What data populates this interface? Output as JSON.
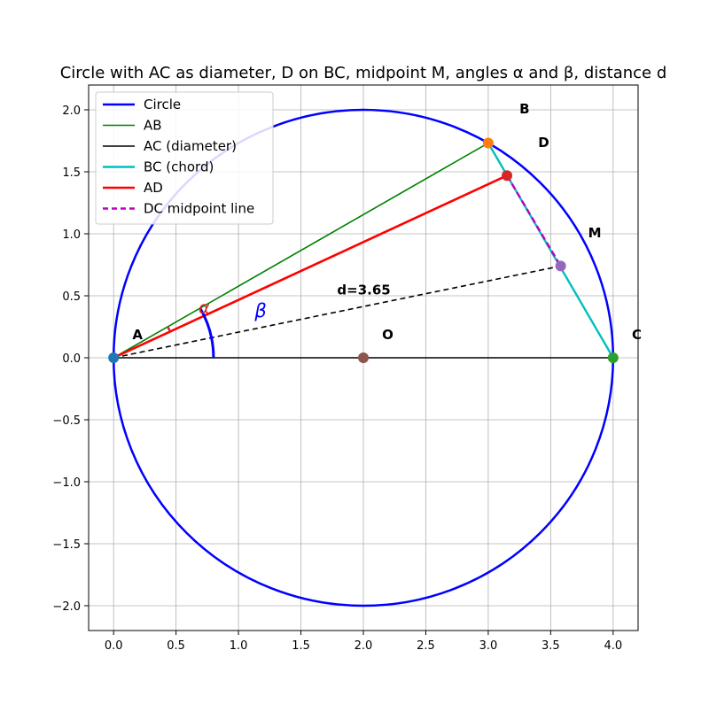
{
  "chart_data": {
    "type": "line",
    "title": "Circle with AC as diameter, D on BC, midpoint M, angles α and β, distance d",
    "xlim": [
      -0.2,
      4.2
    ],
    "ylim": [
      -2.2,
      2.2
    ],
    "xticks": [
      0.0,
      0.5,
      1.0,
      1.5,
      2.0,
      2.5,
      3.0,
      3.5,
      4.0
    ],
    "xtick_labels": [
      "0.0",
      "0.5",
      "1.0",
      "1.5",
      "2.0",
      "2.5",
      "3.0",
      "3.5",
      "4.0"
    ],
    "yticks": [
      -2.0,
      -1.5,
      -1.0,
      -0.5,
      0.0,
      0.5,
      1.0,
      1.5,
      2.0
    ],
    "ytick_labels": [
      "−2.0",
      "−1.5",
      "−1.0",
      "−0.5",
      "0.0",
      "0.5",
      "1.0",
      "1.5",
      "2.0"
    ],
    "grid": true,
    "legend_position": "upper-left",
    "circle": {
      "center": [
        2.0,
        0.0
      ],
      "radius": 2.0,
      "color": "#0000ff",
      "legend": "Circle"
    },
    "series": [
      {
        "name": "AB",
        "color": "#008000",
        "style": "solid",
        "points": [
          [
            0.0,
            0.0
          ],
          [
            3.0,
            1.732
          ]
        ]
      },
      {
        "name": "AC (diameter)",
        "color": "#000000",
        "style": "solid",
        "points": [
          [
            0.0,
            0.0
          ],
          [
            4.0,
            0.0
          ]
        ]
      },
      {
        "name": "BC (chord)",
        "color": "#00bfbf",
        "style": "solid",
        "points": [
          [
            3.0,
            1.732
          ],
          [
            4.0,
            0.0
          ]
        ]
      },
      {
        "name": "AD",
        "color": "#ff0000",
        "style": "solid",
        "points": [
          [
            0.0,
            0.0
          ],
          [
            3.15,
            1.47
          ]
        ]
      },
      {
        "name": "DC midpoint line",
        "color": "#bf00bf",
        "style": "dashed",
        "points": [
          [
            3.15,
            1.47
          ],
          [
            3.58,
            0.74
          ]
        ]
      }
    ],
    "distance_line": {
      "color": "#000000",
      "style": "dashed",
      "points": [
        [
          0.0,
          0.0
        ],
        [
          3.58,
          0.74
        ]
      ]
    },
    "points": [
      {
        "name": "A",
        "xy": [
          0.0,
          0.0
        ],
        "color": "#1f77b4"
      },
      {
        "name": "B",
        "xy": [
          3.0,
          1.732
        ],
        "color": "#ff7f0e"
      },
      {
        "name": "C",
        "xy": [
          4.0,
          0.0
        ],
        "color": "#2ca02c"
      },
      {
        "name": "D",
        "xy": [
          3.15,
          1.47
        ],
        "color": "#d62728"
      },
      {
        "name": "M",
        "xy": [
          3.58,
          0.74
        ],
        "color": "#9467bd"
      },
      {
        "name": "O",
        "xy": [
          2.0,
          0.0
        ],
        "color": "#8c564b"
      }
    ],
    "point_labels": [
      {
        "text": "A",
        "xy": [
          0.15,
          0.15
        ]
      },
      {
        "text": "B",
        "xy": [
          3.25,
          1.97
        ]
      },
      {
        "text": "C",
        "xy": [
          4.15,
          0.15
        ]
      },
      {
        "text": "D",
        "xy": [
          3.4,
          1.7
        ]
      },
      {
        "text": "M",
        "xy": [
          3.8,
          0.97
        ]
      },
      {
        "text": "O",
        "xy": [
          2.15,
          0.15
        ]
      }
    ],
    "angle_beta": {
      "label": "β",
      "label_xy": [
        1.13,
        0.33
      ],
      "color": "#0000ff",
      "radius": 0.8,
      "from_deg": 0,
      "to_deg": 30
    },
    "angle_alpha": {
      "label": "α",
      "label_xy": [
        0.68,
        0.36
      ],
      "color": "#d62728",
      "radius": 0.5,
      "from_deg": 25,
      "to_deg": 30
    },
    "annotations": [
      {
        "text": "d=3.65",
        "xy": [
          1.79,
          0.51
        ]
      }
    ]
  }
}
